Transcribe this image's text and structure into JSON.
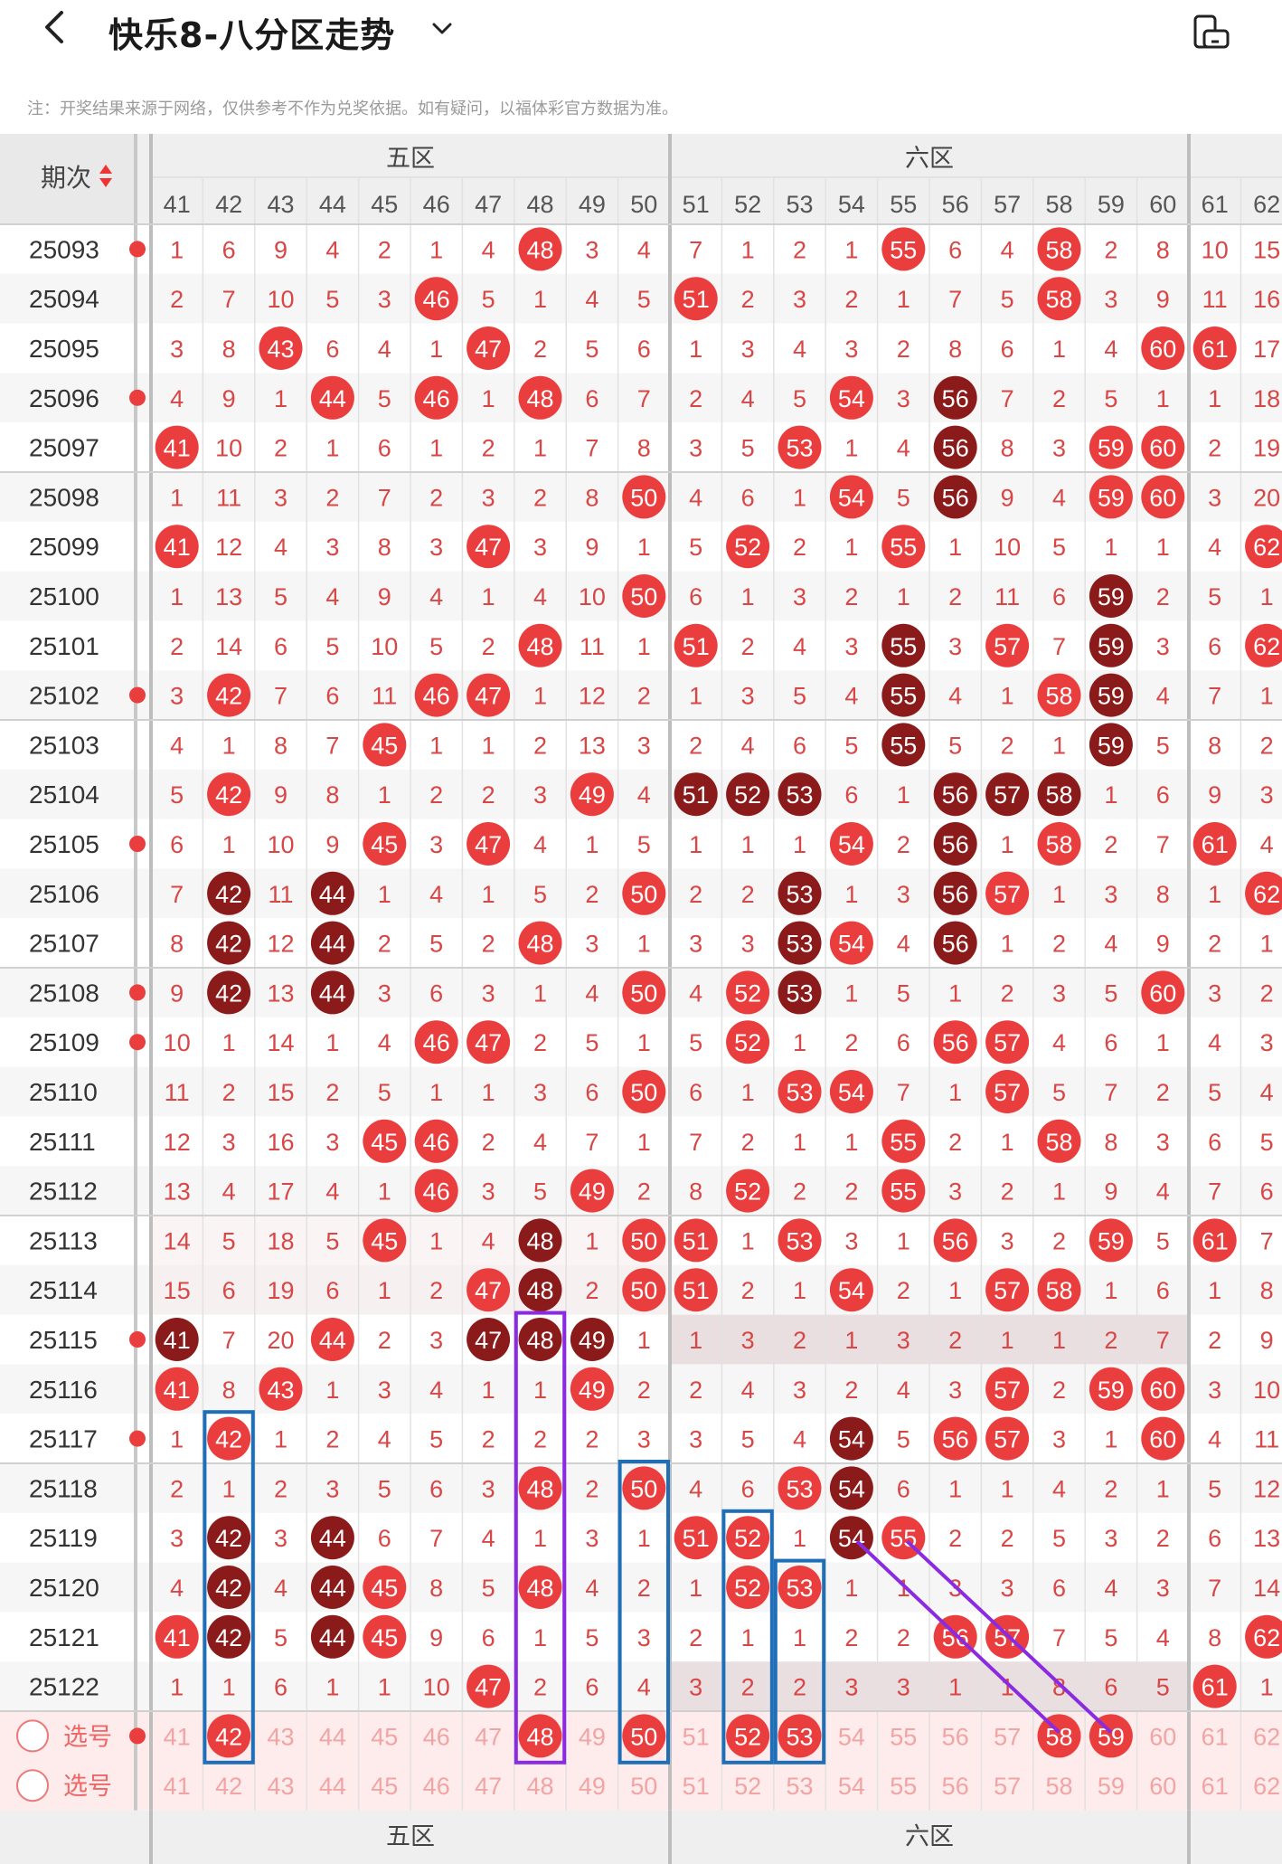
{
  "header": {
    "title": "快乐8-八分区走势",
    "notice": "注：开奖结果来源于网络，仅供参考不作为兑奖依据。如有疑问，以福体彩官方数据为准。"
  },
  "table": {
    "period_label": "期次",
    "zones": [
      "五区",
      "六区"
    ],
    "columns": [
      41,
      42,
      43,
      44,
      45,
      46,
      47,
      48,
      49,
      50,
      51,
      52,
      53,
      54,
      55,
      56,
      57,
      58,
      59,
      60,
      61,
      62
    ],
    "select_label": "选号",
    "rows": [
      {
        "p": "25093",
        "v": [
          1,
          6,
          9,
          4,
          2,
          1,
          4,
          48,
          3,
          4,
          7,
          1,
          2,
          1,
          55,
          6,
          4,
          58,
          2,
          8,
          10,
          15
        ],
        "dark": [],
        "edge": true
      },
      {
        "p": "25094",
        "v": [
          2,
          7,
          10,
          5,
          3,
          46,
          5,
          1,
          4,
          5,
          51,
          2,
          3,
          2,
          1,
          7,
          5,
          58,
          3,
          9,
          11,
          16
        ],
        "dark": [],
        "edge": false
      },
      {
        "p": "25095",
        "v": [
          3,
          8,
          43,
          6,
          4,
          1,
          47,
          2,
          5,
          6,
          1,
          3,
          4,
          3,
          2,
          8,
          6,
          1,
          4,
          60,
          61,
          17
        ],
        "dark": [],
        "edge": false
      },
      {
        "p": "25096",
        "v": [
          4,
          9,
          1,
          44,
          5,
          46,
          1,
          48,
          6,
          7,
          2,
          4,
          5,
          54,
          3,
          56,
          7,
          2,
          5,
          1,
          1,
          18
        ],
        "dark": [
          56
        ],
        "edge": true
      },
      {
        "p": "25097",
        "v": [
          41,
          10,
          2,
          1,
          6,
          1,
          2,
          1,
          7,
          8,
          3,
          5,
          53,
          1,
          4,
          56,
          8,
          3,
          59,
          60,
          2,
          19
        ],
        "dark": [
          56
        ],
        "edge": false
      },
      {
        "p": "25098",
        "v": [
          1,
          11,
          3,
          2,
          7,
          2,
          3,
          2,
          8,
          50,
          4,
          6,
          1,
          54,
          5,
          56,
          9,
          4,
          59,
          60,
          3,
          20
        ],
        "dark": [
          56
        ],
        "edge": false
      },
      {
        "p": "25099",
        "v": [
          41,
          12,
          4,
          3,
          8,
          3,
          47,
          3,
          9,
          1,
          5,
          52,
          2,
          1,
          55,
          1,
          10,
          5,
          1,
          1,
          4,
          62
        ],
        "dark": [],
        "edge": false
      },
      {
        "p": "25100",
        "v": [
          1,
          13,
          5,
          4,
          9,
          4,
          1,
          4,
          10,
          50,
          6,
          1,
          3,
          2,
          1,
          2,
          11,
          6,
          59,
          2,
          5,
          1
        ],
        "dark": [
          59
        ],
        "edge": false
      },
      {
        "p": "25101",
        "v": [
          2,
          14,
          6,
          5,
          10,
          5,
          2,
          48,
          11,
          1,
          51,
          2,
          4,
          3,
          55,
          3,
          57,
          7,
          59,
          3,
          6,
          62
        ],
        "dark": [
          55,
          59
        ],
        "edge": false
      },
      {
        "p": "25102",
        "v": [
          3,
          42,
          7,
          6,
          11,
          46,
          47,
          1,
          12,
          2,
          1,
          3,
          5,
          4,
          55,
          4,
          1,
          58,
          59,
          4,
          7,
          1
        ],
        "dark": [
          55,
          59
        ],
        "edge": true
      },
      {
        "p": "25103",
        "v": [
          4,
          1,
          8,
          7,
          45,
          1,
          1,
          2,
          13,
          3,
          2,
          4,
          6,
          5,
          55,
          5,
          2,
          1,
          59,
          5,
          8,
          2
        ],
        "dark": [
          55,
          59
        ],
        "edge": false
      },
      {
        "p": "25104",
        "v": [
          5,
          42,
          9,
          8,
          1,
          2,
          2,
          3,
          49,
          4,
          51,
          52,
          53,
          6,
          1,
          56,
          57,
          58,
          1,
          6,
          9,
          3
        ],
        "dark": [
          51,
          52,
          53,
          56,
          57,
          58
        ],
        "edge": false
      },
      {
        "p": "25105",
        "v": [
          6,
          1,
          10,
          9,
          45,
          3,
          47,
          4,
          1,
          5,
          1,
          1,
          1,
          54,
          2,
          56,
          1,
          58,
          2,
          7,
          61,
          4
        ],
        "dark": [
          56
        ],
        "edge": true
      },
      {
        "p": "25106",
        "v": [
          7,
          42,
          11,
          44,
          1,
          4,
          1,
          5,
          2,
          50,
          2,
          2,
          53,
          1,
          3,
          56,
          57,
          1,
          3,
          8,
          1,
          62
        ],
        "dark": [
          42,
          44,
          53,
          56
        ],
        "edge": false
      },
      {
        "p": "25107",
        "v": [
          8,
          42,
          12,
          44,
          2,
          5,
          2,
          48,
          3,
          1,
          3,
          3,
          53,
          54,
          4,
          56,
          1,
          2,
          4,
          9,
          2,
          1
        ],
        "dark": [
          42,
          44,
          53,
          56
        ],
        "edge": false
      },
      {
        "p": "25108",
        "v": [
          9,
          42,
          13,
          44,
          3,
          6,
          3,
          1,
          4,
          50,
          4,
          52,
          53,
          1,
          5,
          1,
          2,
          3,
          5,
          60,
          3,
          2
        ],
        "dark": [
          42,
          44,
          53
        ],
        "edge": true
      },
      {
        "p": "25109",
        "v": [
          10,
          1,
          14,
          1,
          4,
          46,
          47,
          2,
          5,
          1,
          5,
          52,
          1,
          2,
          6,
          56,
          57,
          4,
          6,
          1,
          4,
          3
        ],
        "dark": [],
        "edge": true
      },
      {
        "p": "25110",
        "v": [
          11,
          2,
          15,
          2,
          5,
          1,
          1,
          3,
          6,
          50,
          6,
          1,
          53,
          54,
          7,
          1,
          57,
          5,
          7,
          2,
          5,
          4
        ],
        "dark": [],
        "edge": false
      },
      {
        "p": "25111",
        "v": [
          12,
          3,
          16,
          3,
          45,
          46,
          2,
          4,
          7,
          1,
          7,
          2,
          1,
          1,
          55,
          2,
          1,
          58,
          8,
          3,
          6,
          5
        ],
        "dark": [],
        "edge": false
      },
      {
        "p": "25112",
        "v": [
          13,
          4,
          17,
          4,
          1,
          46,
          3,
          5,
          49,
          2,
          8,
          52,
          2,
          2,
          55,
          3,
          2,
          1,
          9,
          4,
          7,
          6
        ],
        "dark": [],
        "edge": false
      },
      {
        "p": "25113",
        "v": [
          14,
          5,
          18,
          5,
          45,
          1,
          4,
          48,
          1,
          50,
          51,
          1,
          53,
          3,
          1,
          56,
          3,
          2,
          59,
          5,
          61,
          7
        ],
        "dark": [
          48
        ],
        "edge": false
      },
      {
        "p": "25114",
        "v": [
          15,
          6,
          19,
          6,
          1,
          2,
          47,
          48,
          2,
          50,
          51,
          2,
          1,
          54,
          2,
          1,
          57,
          58,
          1,
          6,
          1,
          8
        ],
        "dark": [
          48
        ],
        "edge": false
      },
      {
        "p": "25115",
        "v": [
          41,
          7,
          20,
          44,
          2,
          3,
          47,
          48,
          49,
          1,
          1,
          3,
          2,
          1,
          3,
          2,
          1,
          1,
          2,
          7,
          2,
          9
        ],
        "dark": [
          41,
          47,
          48,
          49
        ],
        "edge": true
      },
      {
        "p": "25116",
        "v": [
          41,
          8,
          43,
          1,
          3,
          4,
          1,
          1,
          49,
          2,
          2,
          4,
          3,
          2,
          4,
          3,
          57,
          2,
          59,
          60,
          3,
          10
        ],
        "dark": [],
        "edge": false
      },
      {
        "p": "25117",
        "v": [
          1,
          42,
          1,
          2,
          4,
          5,
          2,
          2,
          2,
          3,
          3,
          5,
          4,
          54,
          5,
          56,
          57,
          3,
          1,
          60,
          4,
          11
        ],
        "dark": [
          54
        ],
        "edge": true
      },
      {
        "p": "25118",
        "v": [
          2,
          1,
          2,
          3,
          5,
          6,
          3,
          48,
          2,
          50,
          4,
          6,
          53,
          54,
          6,
          1,
          1,
          4,
          2,
          1,
          5,
          12
        ],
        "dark": [
          54
        ],
        "edge": false
      },
      {
        "p": "25119",
        "v": [
          3,
          42,
          3,
          44,
          6,
          7,
          4,
          1,
          3,
          1,
          51,
          52,
          1,
          54,
          55,
          2,
          2,
          5,
          3,
          2,
          6,
          13
        ],
        "dark": [
          42,
          44,
          54
        ],
        "edge": false
      },
      {
        "p": "25120",
        "v": [
          4,
          42,
          4,
          44,
          45,
          8,
          5,
          48,
          4,
          2,
          1,
          52,
          53,
          1,
          1,
          3,
          3,
          6,
          4,
          3,
          7,
          14
        ],
        "dark": [
          42,
          44
        ],
        "edge": false
      },
      {
        "p": "25121",
        "v": [
          41,
          42,
          5,
          44,
          45,
          9,
          6,
          1,
          5,
          3,
          2,
          1,
          1,
          2,
          2,
          56,
          57,
          7,
          5,
          4,
          8,
          62
        ],
        "dark": [
          42,
          44
        ],
        "edge": false
      },
      {
        "p": "25122",
        "v": [
          1,
          1,
          6,
          1,
          1,
          10,
          47,
          2,
          6,
          4,
          3,
          2,
          2,
          3,
          3,
          1,
          1,
          8,
          6,
          5,
          61,
          1
        ],
        "dark": [],
        "edge": false
      }
    ],
    "select_row_1": {
      "hits": [
        42,
        48,
        50,
        52,
        53,
        58,
        59
      ]
    },
    "select_row_2": {
      "hits": []
    }
  },
  "colors": {
    "red": "#ea3d3d",
    "dark": "#8b1b1b",
    "text": "#d94646",
    "blue": "#1f6fb8",
    "purple": "#8a2be2"
  }
}
